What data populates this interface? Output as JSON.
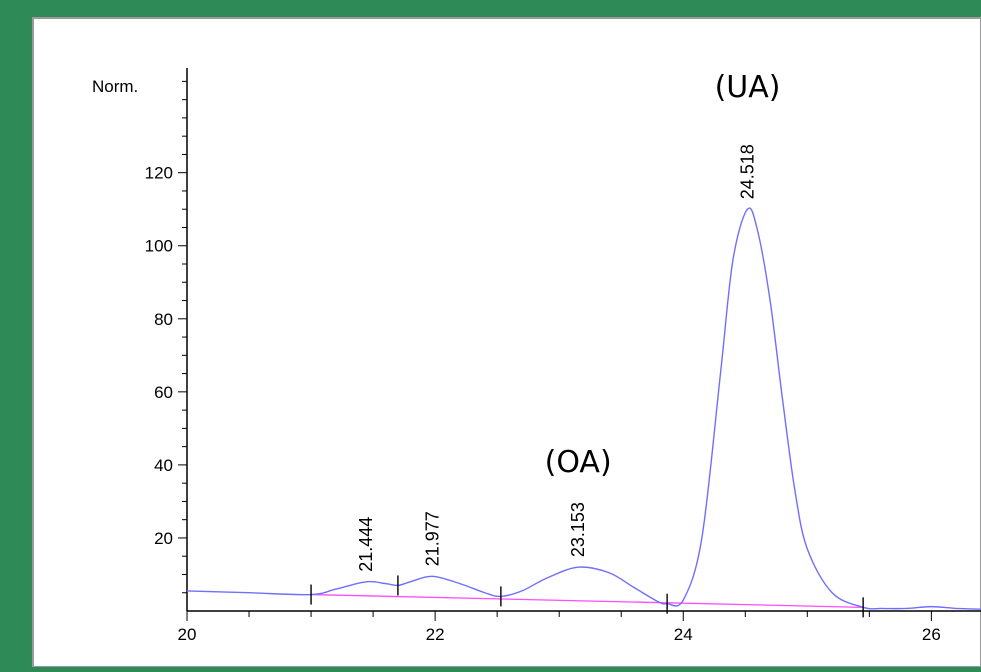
{
  "chart_data": {
    "type": "line",
    "title": "",
    "xlabel": "",
    "ylabel": "Norm.",
    "xlim": [
      20,
      26.4
    ],
    "ylim": [
      0,
      150
    ],
    "x_ticks": [
      {
        "value": 20,
        "label": "20"
      },
      {
        "value": 22,
        "label": "22"
      },
      {
        "value": 24,
        "label": "24"
      },
      {
        "value": 26,
        "label": "26"
      }
    ],
    "y_ticks": [
      {
        "value": 20,
        "label": "20"
      },
      {
        "value": 40,
        "label": "40"
      },
      {
        "value": 60,
        "label": "60"
      },
      {
        "value": 80,
        "label": "80"
      },
      {
        "value": 100,
        "label": "100"
      },
      {
        "value": 120,
        "label": "120"
      }
    ],
    "series": [
      {
        "color": "#6f6fff",
        "x": [
          20.0,
          20.5,
          21.0,
          21.2,
          21.444,
          21.6,
          21.7,
          21.8,
          21.977,
          22.2,
          22.4,
          22.53,
          22.7,
          22.9,
          23.153,
          23.4,
          23.6,
          23.8,
          23.87,
          24.0,
          24.15,
          24.3,
          24.4,
          24.518,
          24.6,
          24.7,
          24.8,
          24.9,
          25.0,
          25.2,
          25.45,
          25.6,
          25.8,
          26.0,
          26.2,
          26.4
        ],
        "y": [
          5.5,
          5.0,
          4.5,
          6.0,
          8.0,
          7.5,
          7.0,
          8.0,
          9.5,
          7.5,
          5.0,
          4.0,
          5.5,
          9.0,
          12.0,
          10.5,
          6.5,
          2.5,
          2.0,
          3.0,
          20.0,
          65.0,
          96.0,
          110.0,
          104.0,
          85.0,
          58.0,
          33.0,
          17.0,
          5.0,
          1.0,
          0.7,
          0.7,
          1.2,
          0.7,
          0.5
        ]
      },
      {
        "color": "#ff4dff",
        "x": [
          21.0,
          25.45
        ],
        "y": [
          4.5,
          1.0
        ]
      }
    ],
    "peaks": [
      {
        "x": 21.444,
        "y": 8.0,
        "label": "21.444"
      },
      {
        "x": 21.977,
        "y": 9.5,
        "label": "21.977"
      },
      {
        "x": 23.153,
        "y": 12.0,
        "label": "23.153"
      },
      {
        "x": 24.518,
        "y": 110.0,
        "label": "24.518"
      }
    ],
    "integration_markers": [
      21.0,
      21.7,
      22.53,
      23.87,
      25.45
    ],
    "annotations": [
      {
        "x": 23.153,
        "label": "(OA)"
      },
      {
        "x": 24.518,
        "label": "(UA)"
      }
    ],
    "grid": false,
    "legend": "none"
  },
  "colors": {
    "background": "#2e8b57",
    "panel": "#ffffff",
    "signal": "#6f6fff",
    "baseline": "#ff4dff"
  }
}
